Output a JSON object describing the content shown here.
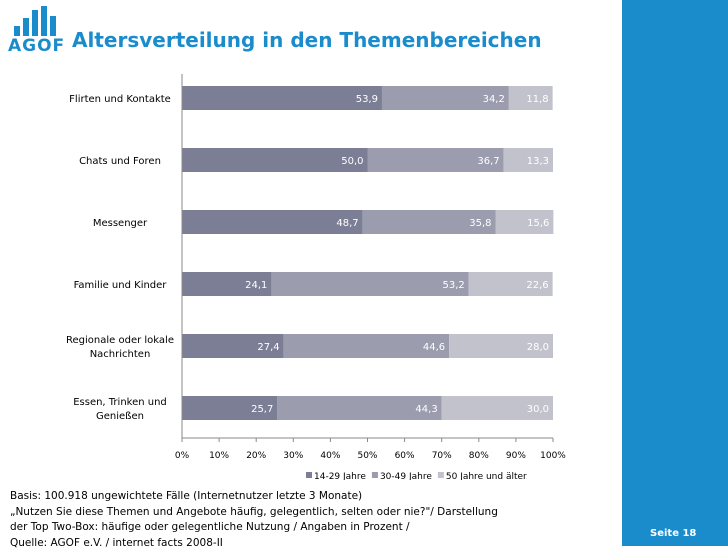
{
  "logo": {
    "text": "AGOF",
    "color": "#1a8ccc"
  },
  "title": "Altersverteilung in den Themenbereichen",
  "chart_data": {
    "type": "bar",
    "orientation": "horizontal",
    "stacked": true,
    "title": "Altersverteilung in den Themenbereichen",
    "categories": [
      "Flirten und Kontakte",
      "Chats und Foren",
      "Messenger",
      "Familie und Kinder",
      "Regionale oder lokale Nachrichten",
      "Essen, Trinken und Genießen"
    ],
    "category_lines": [
      [
        "Flirten und Kontakte"
      ],
      [
        "Chats und Foren"
      ],
      [
        "Messenger"
      ],
      [
        "Familie und Kinder"
      ],
      [
        "Regionale oder lokale",
        "Nachrichten"
      ],
      [
        "Essen, Trinken und",
        "Genießen"
      ]
    ],
    "series": [
      {
        "name": "14-29 Jahre",
        "color": "#7c7e96",
        "values": [
          53.9,
          50.0,
          48.7,
          24.1,
          27.4,
          25.7
        ],
        "labels": [
          "53,9",
          "50,0",
          "48,7",
          "24,1",
          "27,4",
          "25,7"
        ]
      },
      {
        "name": "30-49 Jahre",
        "color": "#9b9cad",
        "values": [
          34.2,
          36.7,
          35.8,
          53.2,
          44.6,
          44.3
        ],
        "labels": [
          "34,2",
          "36,7",
          "35,8",
          "53,2",
          "44,6",
          "44,3"
        ]
      },
      {
        "name": "50 Jahre und älter",
        "color": "#c2c2cc",
        "values": [
          11.8,
          13.3,
          15.6,
          22.6,
          28.0,
          30.0
        ],
        "labels": [
          "11,8",
          "13,3",
          "15,6",
          "22,6",
          "28,0",
          "30,0"
        ]
      }
    ],
    "xlim": [
      0,
      100
    ],
    "xticks": [
      0,
      10,
      20,
      30,
      40,
      50,
      60,
      70,
      80,
      90,
      100
    ],
    "xtick_labels": [
      "0%",
      "10%",
      "20%",
      "30%",
      "40%",
      "50%",
      "60%",
      "70%",
      "80%",
      "90%",
      "100%"
    ],
    "xlabel": "",
    "ylabel": "",
    "grid": false,
    "legend_position": "bottom"
  },
  "footer": {
    "lines": [
      "Basis: 100.918 ungewichtete Fälle (Internetnutzer letzte 3 Monate)",
      "„Nutzen Sie diese Themen und Angebote häufig, gelegentlich, selten oder nie?\"/ Darstellung",
      "der Top Two-Box: häufige oder gelegentliche Nutzung / Angaben in Prozent /",
      "Quelle: AGOF e.V. / internet facts 2008-II"
    ]
  },
  "page_number": "Seite 18",
  "colors": {
    "brand": "#1a8ccc",
    "band": "#1a8ccc"
  }
}
